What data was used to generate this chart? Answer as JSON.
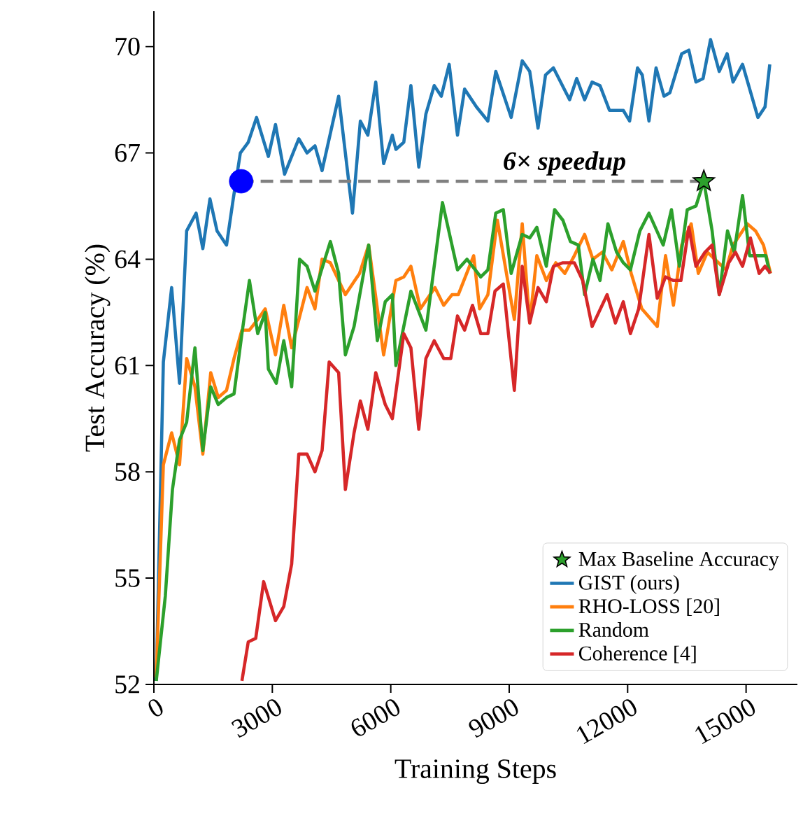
{
  "chart_data": {
    "type": "line",
    "xlabel": "Training Steps",
    "ylabel": "Test Accuracy (%)",
    "xlim": [
      0,
      16300
    ],
    "ylim": [
      52,
      71
    ],
    "xticks": [
      0,
      3000,
      6000,
      9000,
      12000,
      15000
    ],
    "yticks": [
      52,
      55,
      58,
      61,
      64,
      67,
      70
    ],
    "legend": "bottom right",
    "grid": false,
    "annotations": [
      {
        "text": "6× speedup",
        "x": 10400,
        "y": 66.2
      }
    ],
    "series": [
      {
        "name": "Max Baseline Accuracy",
        "type": "scatter",
        "marker": "star",
        "color": "#2ca02c",
        "x": [
          13930
        ],
        "values": [
          66.2
        ]
      },
      {
        "name": "GIST (ours)",
        "color": "#1f77b4",
        "x": [
          60,
          240,
          450,
          650,
          830,
          1070,
          1240,
          1420,
          1600,
          1840,
          2010,
          2190,
          2390,
          2600,
          2900,
          3080,
          3310,
          3670,
          3880,
          4080,
          4260,
          4680,
          5030,
          5230,
          5420,
          5620,
          5820,
          6040,
          6130,
          6330,
          6510,
          6710,
          6890,
          7100,
          7280,
          7480,
          7690,
          7870,
          8170,
          8460,
          8660,
          9050,
          9330,
          9520,
          9730,
          9920,
          10120,
          10530,
          10710,
          10910,
          11100,
          11300,
          11540,
          11890,
          12050,
          12250,
          12370,
          12540,
          12720,
          12920,
          13070,
          13370,
          13550,
          13730,
          13910,
          14100,
          14320,
          14520,
          14670,
          14910,
          15300,
          15480,
          15600
        ],
        "values": [
          52.1,
          61.1,
          63.2,
          60.5,
          64.8,
          65.3,
          64.3,
          65.7,
          64.8,
          64.4,
          65.7,
          67.0,
          67.3,
          68.0,
          66.9,
          67.8,
          66.4,
          67.4,
          67.0,
          67.2,
          66.5,
          68.6,
          65.3,
          67.9,
          67.5,
          69.0,
          66.7,
          67.5,
          67.1,
          67.3,
          68.9,
          66.6,
          68.1,
          68.9,
          68.6,
          69.5,
          67.5,
          68.8,
          68.3,
          67.9,
          69.3,
          68.0,
          69.6,
          69.3,
          67.7,
          69.2,
          69.4,
          68.5,
          69.1,
          68.5,
          69.0,
          68.9,
          68.2,
          68.2,
          67.9,
          69.4,
          69.2,
          67.9,
          69.4,
          68.6,
          68.7,
          69.8,
          69.9,
          69.0,
          69.1,
          70.2,
          69.3,
          69.8,
          69.0,
          69.5,
          68.0,
          68.3,
          69.5
        ]
      },
      {
        "name": "RHO-LOSS [20]",
        "color": "#ff7f0e",
        "x": [
          60,
          240,
          450,
          650,
          830,
          1040,
          1240,
          1440,
          1630,
          1840,
          2030,
          2230,
          2420,
          2630,
          2820,
          3080,
          3290,
          3490,
          3880,
          4080,
          4260,
          4470,
          4850,
          5210,
          5440,
          5820,
          6130,
          6330,
          6510,
          6750,
          7120,
          7340,
          7550,
          7710,
          8100,
          8250,
          8460,
          8700,
          9130,
          9330,
          9520,
          9700,
          9940,
          10180,
          10410,
          10650,
          10910,
          11120,
          11360,
          11600,
          11890,
          12090,
          12360,
          12750,
          12960,
          13160,
          13370,
          13610,
          13790,
          14020,
          14490,
          14670,
          15030,
          15240,
          15440,
          15620
        ],
        "values": [
          52.2,
          58.2,
          59.1,
          58.2,
          61.2,
          60.4,
          58.5,
          60.8,
          60.1,
          60.3,
          61.2,
          62.0,
          62.0,
          62.3,
          62.6,
          61.3,
          62.7,
          61.5,
          63.2,
          62.6,
          64.0,
          63.9,
          63.0,
          63.6,
          64.4,
          61.3,
          63.4,
          63.5,
          63.8,
          62.6,
          63.2,
          62.7,
          63.0,
          63.0,
          64.1,
          62.6,
          63.0,
          65.1,
          62.3,
          65.0,
          62.2,
          64.1,
          63.4,
          63.9,
          63.6,
          64.1,
          64.7,
          64.0,
          64.2,
          63.7,
          64.5,
          63.6,
          62.6,
          62.1,
          64.1,
          62.7,
          64.4,
          65.0,
          63.6,
          64.2,
          63.7,
          64.4,
          65.0,
          64.8,
          64.4,
          63.6
        ]
      },
      {
        "name": "Random",
        "color": "#2ca02c",
        "x": [
          60,
          290,
          470,
          650,
          830,
          1040,
          1240,
          1440,
          1630,
          1840,
          2030,
          2230,
          2420,
          2630,
          2820,
          2900,
          3100,
          3290,
          3490,
          3690,
          3880,
          4080,
          4470,
          4680,
          4850,
          5070,
          5440,
          5660,
          5860,
          6040,
          6130,
          6510,
          6890,
          7310,
          7690,
          7930,
          8280,
          8460,
          8660,
          8850,
          9050,
          9330,
          9520,
          9700,
          9940,
          10150,
          10360,
          10550,
          10750,
          10910,
          11120,
          11300,
          11500,
          11720,
          11890,
          12070,
          12310,
          12540,
          12900,
          13110,
          13310,
          13510,
          13730,
          13930,
          14140,
          14320,
          14530,
          14700,
          14910,
          15090,
          15270,
          15500,
          15600
        ],
        "values": [
          52.1,
          54.5,
          57.5,
          58.9,
          59.4,
          61.5,
          58.6,
          60.4,
          59.9,
          60.1,
          60.2,
          61.9,
          63.4,
          61.9,
          62.5,
          60.9,
          60.5,
          61.7,
          60.4,
          64.0,
          63.8,
          63.1,
          64.5,
          63.6,
          61.3,
          62.1,
          64.4,
          61.7,
          62.8,
          63.0,
          61.0,
          63.1,
          62.0,
          65.6,
          63.7,
          64.0,
          63.5,
          63.7,
          65.3,
          65.4,
          63.6,
          64.7,
          64.6,
          64.9,
          63.8,
          65.4,
          65.1,
          64.5,
          64.4,
          63.0,
          64.0,
          63.4,
          65.0,
          64.2,
          63.9,
          63.7,
          64.8,
          65.3,
          64.4,
          65.4,
          63.8,
          65.4,
          65.5,
          66.2,
          64.8,
          63.0,
          64.8,
          64.2,
          65.8,
          64.1,
          64.1,
          64.1,
          63.6
        ]
      },
      {
        "name": "Coherence [4]",
        "color": "#d62728",
        "x": [
          2230,
          2390,
          2580,
          2780,
          3080,
          3290,
          3490,
          3670,
          3880,
          4080,
          4260,
          4440,
          4680,
          4850,
          5070,
          5230,
          5420,
          5620,
          5860,
          6040,
          6330,
          6510,
          6710,
          6890,
          7100,
          7340,
          7520,
          7690,
          7870,
          8070,
          8280,
          8460,
          8640,
          8850,
          9130,
          9330,
          9520,
          9730,
          9940,
          10120,
          10360,
          10650,
          10860,
          11100,
          11480,
          11690,
          11890,
          12070,
          12280,
          12540,
          12750,
          12960,
          13160,
          13350,
          13550,
          13730,
          13960,
          14140,
          14320,
          14560,
          14730,
          14910,
          15110,
          15330,
          15480,
          15620
        ],
        "values": [
          52.1,
          53.2,
          53.3,
          54.9,
          53.8,
          54.2,
          55.4,
          58.5,
          58.5,
          58.0,
          58.6,
          61.1,
          60.8,
          57.5,
          59.1,
          60.0,
          59.2,
          60.8,
          59.9,
          59.5,
          61.9,
          61.5,
          59.2,
          61.2,
          61.7,
          61.2,
          61.2,
          62.4,
          62.0,
          62.7,
          61.9,
          61.9,
          63.1,
          63.3,
          60.3,
          63.8,
          62.2,
          63.2,
          62.8,
          63.8,
          63.9,
          63.9,
          63.4,
          62.1,
          63.0,
          62.2,
          62.8,
          61.9,
          62.6,
          64.7,
          62.9,
          63.5,
          63.4,
          63.4,
          64.9,
          63.8,
          64.2,
          64.4,
          63.0,
          63.9,
          64.2,
          63.8,
          64.6,
          63.6,
          63.8,
          63.6
        ]
      },
      {
        "type": "line",
        "line_style": "dashed",
        "color": "#808080",
        "x": [
          2210,
          13930
        ],
        "values": [
          66.2,
          66.2
        ]
      },
      {
        "type": "scatter",
        "marker": "circle",
        "color": "#0000ff",
        "x": [
          2210
        ],
        "values": [
          66.2
        ]
      }
    ]
  }
}
